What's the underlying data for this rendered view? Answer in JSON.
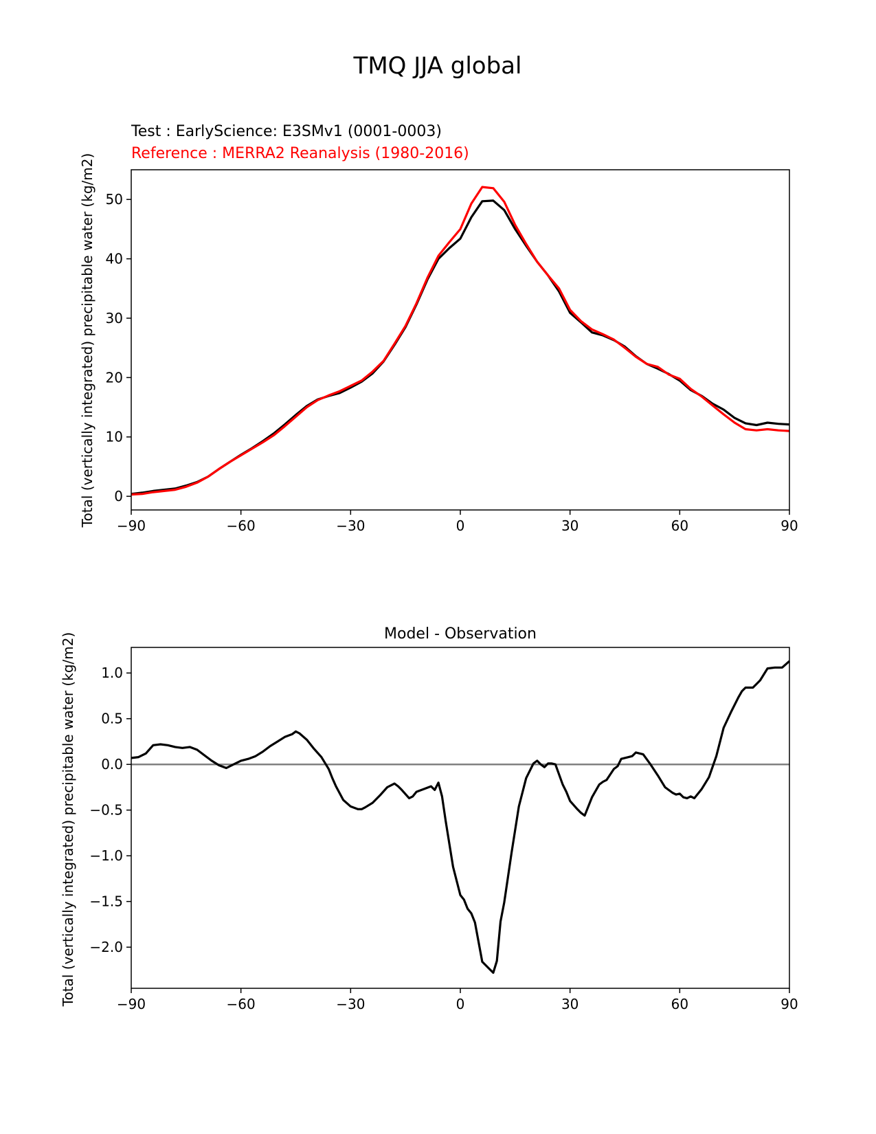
{
  "figure": {
    "title": "TMQ JJA global"
  },
  "colors": {
    "test": "#000000",
    "reference": "#ff0000",
    "zero_line": "#808080",
    "axes": "#000000"
  },
  "chart_data": [
    {
      "type": "line",
      "test_label": "Test : EarlyScience: E3SMv1 (0001-0003)",
      "reference_label": "Reference : MERRA2 Reanalysis (1980-2016)",
      "xlabel": "",
      "ylabel": "Total (vertically integrated) precipitable water (kg/m2)",
      "xlim": [
        -90,
        90
      ],
      "ylim": [
        -2.3,
        55
      ],
      "xticks": [
        -90,
        -60,
        -30,
        0,
        30,
        60,
        90
      ],
      "xtick_labels": [
        "−90",
        "−60",
        "−30",
        "0",
        "30",
        "60",
        "90"
      ],
      "yticks": [
        0,
        10,
        20,
        30,
        40,
        50
      ],
      "ytick_labels": [
        "0",
        "10",
        "20",
        "30",
        "40",
        "50"
      ],
      "series": [
        {
          "name": "Test",
          "color": "#000000",
          "x": [
            -90,
            -87,
            -84,
            -81,
            -78,
            -75,
            -72,
            -69,
            -66,
            -63,
            -60,
            -57,
            -54,
            -51,
            -48,
            -45,
            -42,
            -39,
            -36,
            -33,
            -30,
            -27,
            -24,
            -21,
            -18,
            -15,
            -12,
            -9,
            -6,
            -3,
            0,
            3,
            6,
            9,
            12,
            15,
            18,
            21,
            24,
            27,
            30,
            33,
            36,
            39,
            42,
            45,
            48,
            51,
            54,
            57,
            60,
            63,
            66,
            69,
            72,
            75,
            78,
            81,
            84,
            87,
            90
          ],
          "y": [
            0.4,
            0.6,
            0.9,
            1.1,
            1.3,
            1.8,
            2.4,
            3.3,
            4.6,
            5.8,
            7.0,
            8.1,
            9.3,
            10.6,
            12.1,
            13.7,
            15.2,
            16.3,
            16.9,
            17.4,
            18.3,
            19.3,
            20.7,
            22.7,
            25.5,
            28.5,
            32.3,
            36.5,
            40.0,
            41.8,
            43.4,
            47.0,
            49.7,
            49.8,
            48.2,
            45.0,
            42.2,
            39.5,
            37.2,
            34.5,
            30.9,
            29.3,
            27.6,
            27.1,
            26.3,
            25.2,
            23.6,
            22.3,
            21.5,
            20.6,
            19.5,
            17.9,
            16.9,
            15.6,
            14.6,
            13.2,
            12.3,
            12.0,
            12.4,
            12.2,
            12.1
          ]
        },
        {
          "name": "Reference",
          "color": "#ff0000",
          "x": [
            -90,
            -87,
            -84,
            -81,
            -78,
            -75,
            -72,
            -69,
            -66,
            -63,
            -60,
            -57,
            -54,
            -51,
            -48,
            -45,
            -42,
            -39,
            -36,
            -33,
            -30,
            -27,
            -24,
            -21,
            -18,
            -15,
            -12,
            -9,
            -6,
            -3,
            0,
            3,
            6,
            9,
            12,
            15,
            18,
            21,
            24,
            27,
            30,
            33,
            36,
            39,
            42,
            45,
            48,
            51,
            54,
            57,
            60,
            63,
            66,
            69,
            72,
            75,
            78,
            81,
            84,
            87,
            90
          ],
          "y": [
            0.3,
            0.4,
            0.7,
            0.9,
            1.1,
            1.6,
            2.3,
            3.3,
            4.6,
            5.8,
            6.9,
            8.0,
            9.1,
            10.3,
            11.8,
            13.4,
            15.0,
            16.2,
            17.0,
            17.7,
            18.6,
            19.5,
            21.0,
            22.8,
            25.7,
            28.7,
            32.5,
            36.8,
            40.5,
            42.8,
            45.0,
            49.3,
            52.1,
            51.9,
            49.6,
            45.7,
            42.5,
            39.5,
            37.2,
            35.0,
            31.4,
            29.5,
            28.1,
            27.3,
            26.4,
            25.0,
            23.5,
            22.3,
            21.8,
            20.5,
            19.8,
            18.1,
            16.8,
            15.3,
            13.8,
            12.4,
            11.3,
            11.1,
            11.3,
            11.1,
            11.0
          ]
        }
      ]
    },
    {
      "type": "line",
      "title": "Model - Observation",
      "xlabel": "",
      "ylabel": "Total (vertically integrated) precipitable water (kg/m2)",
      "xlim": [
        -90,
        90
      ],
      "ylim": [
        -2.45,
        1.28
      ],
      "xticks": [
        -90,
        -60,
        -30,
        0,
        30,
        60,
        90
      ],
      "xtick_labels": [
        "−90",
        "−60",
        "−30",
        "0",
        "30",
        "60",
        "90"
      ],
      "yticks": [
        1.0,
        0.5,
        0.0,
        -0.5,
        -1.0,
        -1.5,
        -2.0
      ],
      "ytick_labels": [
        "1.0",
        "0.5",
        "0.0",
        "−0.5",
        "−1.0",
        "−1.5",
        "−2.0"
      ],
      "zero_line": 0.0,
      "series": [
        {
          "name": "Model - Observation",
          "color": "#000000",
          "x": [
            -90,
            -88,
            -86,
            -84,
            -82,
            -80,
            -78,
            -76,
            -74,
            -72,
            -70,
            -68,
            -66,
            -64,
            -62,
            -60,
            -58,
            -56,
            -54,
            -52,
            -50,
            -48,
            -46,
            -45,
            -44,
            -42,
            -40,
            -38,
            -36,
            -35,
            -34,
            -32,
            -30,
            -28,
            -27,
            -26,
            -24,
            -22,
            -20,
            -18,
            -17,
            -16,
            -14,
            -13,
            -12,
            -10,
            -8,
            -7,
            -6,
            -5,
            -4,
            -2,
            0,
            1,
            2,
            3,
            4,
            6,
            8,
            9,
            10,
            11,
            12,
            14,
            16,
            18,
            20,
            21,
            22,
            23,
            24,
            25,
            26,
            28,
            29,
            30,
            32,
            33,
            34,
            36,
            38,
            39,
            40,
            42,
            43,
            44,
            46,
            47,
            48,
            50,
            52,
            54,
            56,
            58,
            59,
            60,
            61,
            62,
            63,
            64,
            66,
            68,
            70,
            72,
            74,
            76,
            77,
            78,
            80,
            81,
            82,
            84,
            86,
            88,
            90
          ],
          "y": [
            0.07,
            0.08,
            0.12,
            0.21,
            0.22,
            0.21,
            0.19,
            0.18,
            0.19,
            0.16,
            0.1,
            0.04,
            -0.01,
            -0.04,
            0.0,
            0.04,
            0.06,
            0.09,
            0.14,
            0.2,
            0.25,
            0.3,
            0.33,
            0.36,
            0.34,
            0.27,
            0.17,
            0.08,
            -0.05,
            -0.15,
            -0.24,
            -0.39,
            -0.46,
            -0.49,
            -0.49,
            -0.47,
            -0.42,
            -0.34,
            -0.25,
            -0.21,
            -0.24,
            -0.28,
            -0.37,
            -0.35,
            -0.3,
            -0.27,
            -0.24,
            -0.28,
            -0.2,
            -0.35,
            -0.62,
            -1.12,
            -1.43,
            -1.48,
            -1.58,
            -1.63,
            -1.73,
            -2.16,
            -2.24,
            -2.28,
            -2.15,
            -1.72,
            -1.51,
            -0.97,
            -0.46,
            -0.15,
            0.01,
            0.04,
            0.0,
            -0.03,
            0.01,
            0.01,
            0.0,
            -0.22,
            -0.3,
            -0.4,
            -0.49,
            -0.53,
            -0.56,
            -0.36,
            -0.22,
            -0.19,
            -0.17,
            -0.05,
            -0.02,
            0.06,
            0.08,
            0.09,
            0.13,
            0.11,
            0.0,
            -0.12,
            -0.25,
            -0.31,
            -0.33,
            -0.32,
            -0.36,
            -0.37,
            -0.35,
            -0.37,
            -0.27,
            -0.14,
            0.09,
            0.4,
            0.57,
            0.73,
            0.8,
            0.84,
            0.84,
            0.88,
            0.92,
            1.05,
            1.06,
            1.06,
            1.13
          ]
        }
      ]
    }
  ]
}
